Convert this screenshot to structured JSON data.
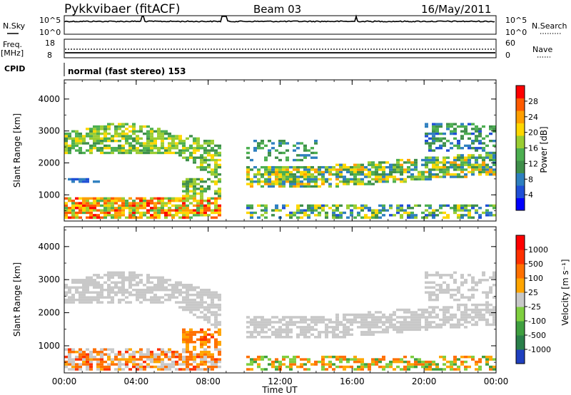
{
  "header": {
    "station": "Pykkvibaer (fitACF)",
    "beam": "Beam 03",
    "date": "16/May/2011"
  },
  "status_panels": {
    "nsky_label": "N.Sky",
    "nsky_ticks": [
      "10^5",
      "10^0"
    ],
    "nsearch_label": "N.Search",
    "nsearch_ticks": [
      "10^5",
      "10^0"
    ],
    "freq_label": "Freq.",
    "freq_unit": "[MHz]",
    "freq_ticks": [
      "18",
      "8"
    ],
    "nave_label": "Nave",
    "nave_ticks": [
      "60",
      "0"
    ],
    "cpid_label": "CPID",
    "cpid_text": "normal (fast stereo) 153"
  },
  "chart_data": [
    {
      "type": "heatmap",
      "panel": "power",
      "xlabel": "",
      "ylabel": "Slant Range [km]",
      "x_ticks": [
        "00:00",
        "04:00",
        "08:00",
        "12:00",
        "16:00",
        "20:00",
        "00:00"
      ],
      "y_ticks": [
        "1000",
        "2000",
        "3000",
        "4000"
      ],
      "xlim": [
        0,
        24
      ],
      "ylim": [
        180,
        4600
      ],
      "colorbar": {
        "label": "Power [dB]",
        "ticks": [
          "4",
          "8",
          "12",
          "16",
          "20",
          "24",
          "28"
        ],
        "colors": [
          "#0000ff",
          "#1f4fd6",
          "#2e7fbf",
          "#3f8f4a",
          "#4caf50",
          "#9acd32",
          "#ffd700",
          "#ff9f00",
          "#ff5a00",
          "#ff0000"
        ]
      },
      "regions": [
        {
          "t": [
            0.0,
            8.6
          ],
          "range": [
            300,
            3200
          ],
          "level": "mixed"
        },
        {
          "t": [
            10.2,
            24.0
          ],
          "range": [
            300,
            3200
          ],
          "level": "mixed"
        }
      ]
    },
    {
      "type": "heatmap",
      "panel": "velocity",
      "xlabel": "Time UT",
      "ylabel": "Slant Range [km]",
      "x_ticks": [
        "00:00",
        "04:00",
        "08:00",
        "12:00",
        "16:00",
        "20:00",
        "00:00"
      ],
      "y_ticks": [
        "1000",
        "2000",
        "3000",
        "4000"
      ],
      "xlim": [
        0,
        24
      ],
      "ylim": [
        180,
        4600
      ],
      "colorbar": {
        "label": "Velocity [m s⁻¹]",
        "ticks": [
          "1000",
          "500",
          "100",
          "25",
          "-25",
          "-100",
          "-500",
          "-1000"
        ],
        "colors": [
          "#1f3fbf",
          "#2a7f4a",
          "#3f9f3f",
          "#7fcf3f",
          "#c8c8c8",
          "#ffa500",
          "#ff7000",
          "#ff3000",
          "#ff0000"
        ]
      }
    }
  ]
}
